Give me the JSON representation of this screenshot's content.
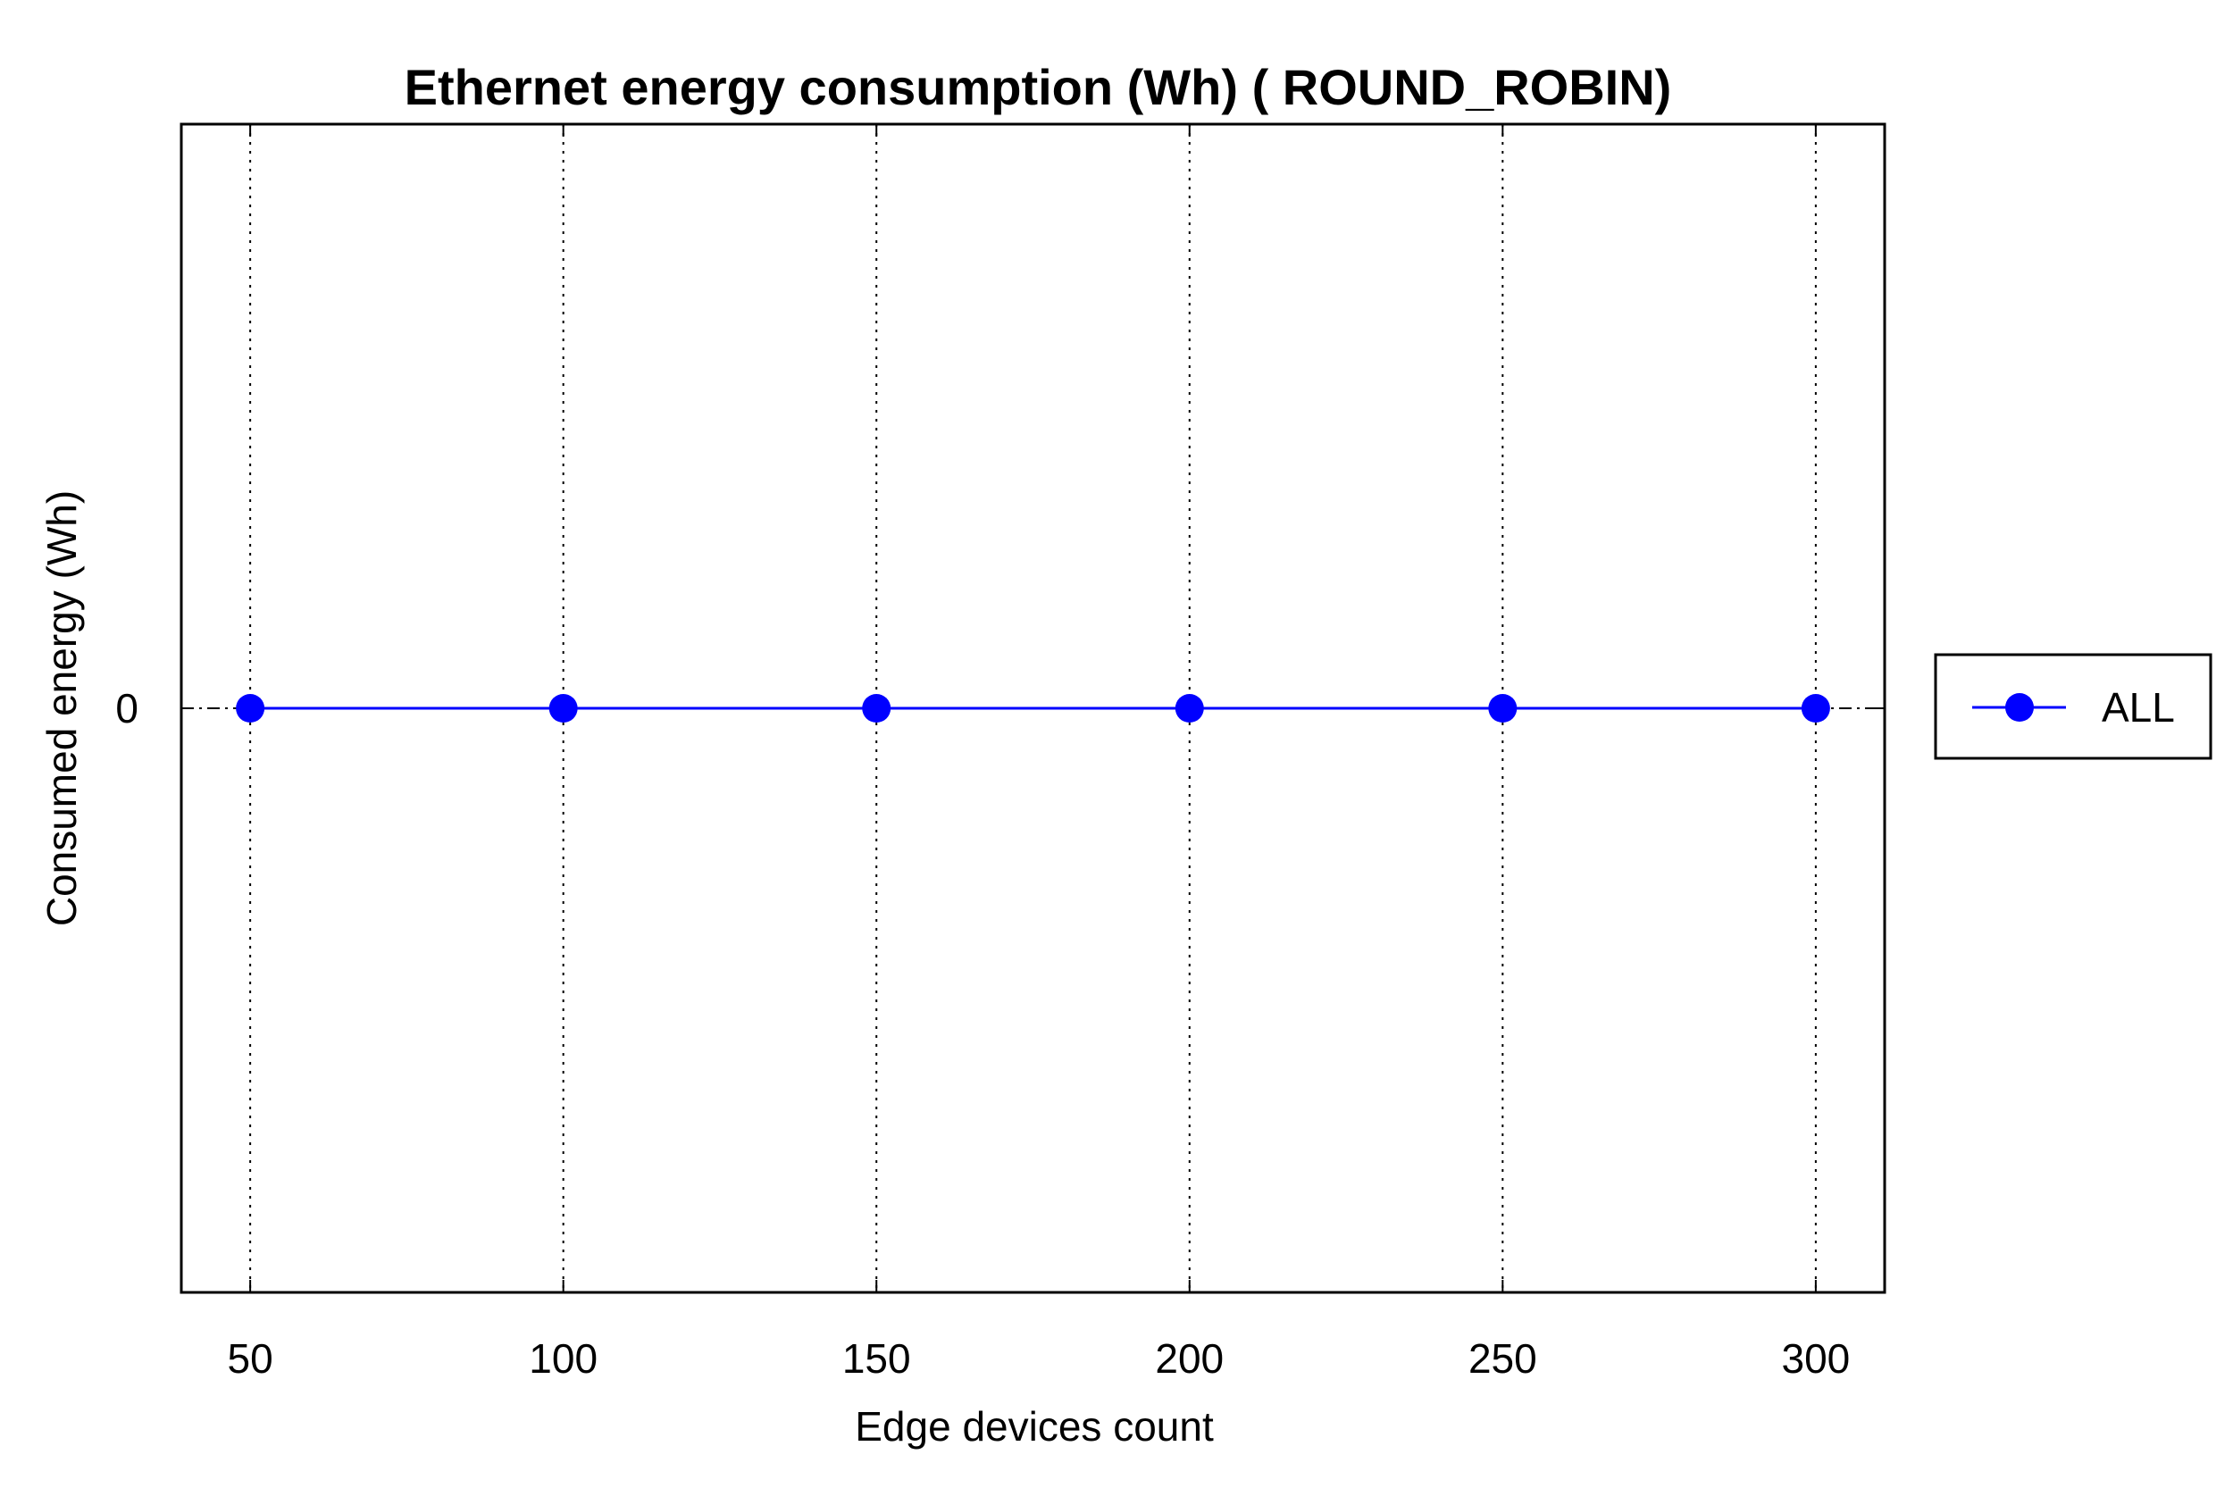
{
  "chart_data": {
    "type": "line",
    "title": "Ethernet energy consumption (Wh) ( ROUND_ROBIN)",
    "xlabel": "Edge devices count",
    "ylabel": "Consumed energy (Wh)",
    "x": [
      50,
      100,
      150,
      200,
      250,
      300
    ],
    "xticks": [
      "50",
      "100",
      "150",
      "200",
      "250",
      "300"
    ],
    "yticks": [
      "0"
    ],
    "xlim": [
      39,
      311
    ],
    "ylim": [
      -1,
      1
    ],
    "grid": "x-dotted",
    "legend": "right",
    "series": [
      {
        "name": "ALL",
        "values": [
          0,
          0,
          0,
          0,
          0,
          0
        ],
        "color": "#0000ff",
        "marker": "circle"
      }
    ]
  }
}
